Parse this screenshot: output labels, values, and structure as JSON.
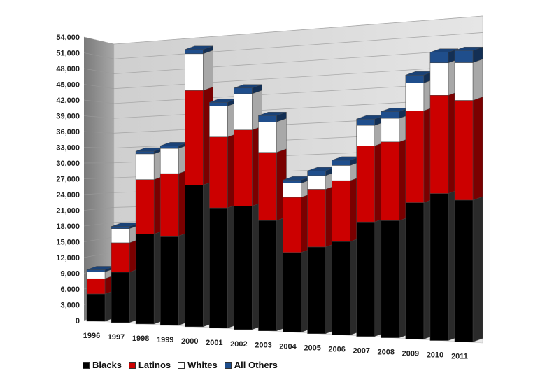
{
  "chart_data": {
    "type": "bar",
    "stacked": true,
    "three_d": true,
    "categories": [
      "1996",
      "1997",
      "1998",
      "1999",
      "2000",
      "2001",
      "2002",
      "2003",
      "2004",
      "2005",
      "2006",
      "2007",
      "2008",
      "2009",
      "2010",
      "2011"
    ],
    "series": [
      {
        "name": "Blacks",
        "color": "#000000",
        "values": [
          5200,
          9600,
          17100,
          17000,
          27000,
          22900,
          23500,
          21000,
          15200,
          16500,
          17800,
          21800,
          22300,
          26000,
          28000,
          27000
        ]
      },
      {
        "name": "Latinos",
        "color": "#cc0000",
        "values": [
          2900,
          5600,
          10400,
          11900,
          18000,
          13500,
          14500,
          13000,
          10500,
          11000,
          11600,
          14500,
          15000,
          17500,
          18700,
          19000
        ]
      },
      {
        "name": "Whites",
        "color": "#ffffff",
        "values": [
          1300,
          2700,
          4900,
          4800,
          7000,
          5900,
          6900,
          5800,
          2700,
          2600,
          2900,
          3900,
          4500,
          5300,
          6200,
          7200
        ]
      },
      {
        "name": "All Others",
        "color": "#1f4e8c",
        "values": [
          400,
          400,
          500,
          500,
          800,
          700,
          1100,
          1200,
          600,
          900,
          1000,
          1200,
          1300,
          1500,
          2000,
          2300
        ]
      }
    ],
    "y_ticks": [
      "0",
      "3,000",
      "6,000",
      "9,000",
      "12,000",
      "15,000",
      "18,000",
      "21,000",
      "24,000",
      "27,000",
      "30,000",
      "33,000",
      "36,000",
      "39,000",
      "42,000",
      "45,000",
      "48,000",
      "51,000",
      "54,000"
    ],
    "ylim": [
      0,
      54000
    ],
    "grid": true,
    "legend_position": "bottom-left",
    "title": "",
    "xlabel": "",
    "ylabel": ""
  },
  "legend": {
    "items": [
      {
        "label": "Blacks",
        "color": "#000000"
      },
      {
        "label": "Latinos",
        "color": "#cc0000"
      },
      {
        "label": "Whites",
        "color": "#ffffff"
      },
      {
        "label": "All Others",
        "color": "#1f4e8c"
      }
    ]
  }
}
